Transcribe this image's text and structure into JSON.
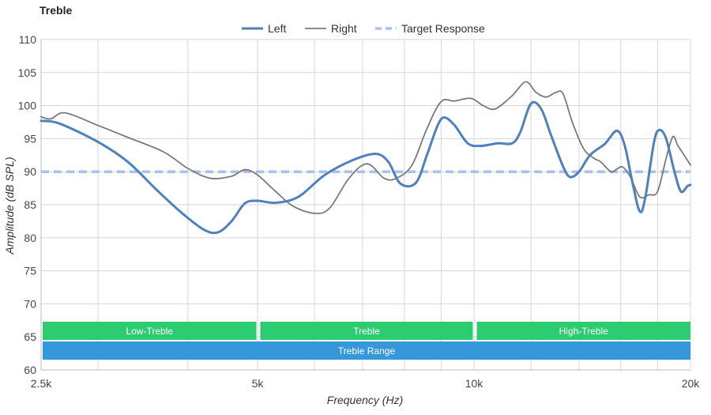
{
  "chart_data": {
    "type": "line",
    "title": "Treble",
    "xlabel": "Frequency (Hz)",
    "ylabel": "Amplitude (dB SPL)",
    "x_scale": "log",
    "xlim": [
      2500,
      20000
    ],
    "ylim": [
      60,
      110
    ],
    "x_ticks": [
      {
        "value": 2500,
        "label": "2.5k"
      },
      {
        "value": 5000,
        "label": "5k"
      },
      {
        "value": 10000,
        "label": "10k"
      },
      {
        "value": 20000,
        "label": "20k"
      }
    ],
    "y_ticks": [
      60,
      65,
      70,
      75,
      80,
      85,
      90,
      95,
      100,
      105,
      110
    ],
    "grid": true,
    "legend_position": "top-center",
    "series": [
      {
        "name": "Left",
        "color": "#4f81bd",
        "style": "solid-thick",
        "points": [
          [
            2500,
            97.7
          ],
          [
            2650,
            97.3
          ],
          [
            3000,
            94.5
          ],
          [
            3300,
            91.5
          ],
          [
            3600,
            87.5
          ],
          [
            3900,
            84.0
          ],
          [
            4200,
            81.3
          ],
          [
            4400,
            80.8
          ],
          [
            4600,
            82.5
          ],
          [
            4800,
            85.2
          ],
          [
            5000,
            85.6
          ],
          [
            5300,
            85.3
          ],
          [
            5700,
            86.2
          ],
          [
            6200,
            89.5
          ],
          [
            6800,
            91.8
          ],
          [
            7300,
            92.7
          ],
          [
            7600,
            91.5
          ],
          [
            7900,
            88.2
          ],
          [
            8300,
            88.3
          ],
          [
            8600,
            92.5
          ],
          [
            8900,
            97.0
          ],
          [
            9100,
            98.2
          ],
          [
            9400,
            97.0
          ],
          [
            9800,
            94.3
          ],
          [
            10200,
            93.9
          ],
          [
            10800,
            94.3
          ],
          [
            11300,
            94.3
          ],
          [
            11600,
            96.0
          ],
          [
            12000,
            100.3
          ],
          [
            12400,
            99.5
          ],
          [
            12800,
            95.5
          ],
          [
            13300,
            90.8
          ],
          [
            13600,
            89.2
          ],
          [
            14000,
            90.0
          ],
          [
            14500,
            92.5
          ],
          [
            15200,
            94.2
          ],
          [
            15800,
            96.2
          ],
          [
            16200,
            94.0
          ],
          [
            16600,
            88.5
          ],
          [
            17000,
            84.0
          ],
          [
            17300,
            86.0
          ],
          [
            17800,
            94.5
          ],
          [
            18100,
            96.3
          ],
          [
            18500,
            95.0
          ],
          [
            19000,
            90.0
          ],
          [
            19400,
            87.0
          ],
          [
            19800,
            87.8
          ],
          [
            20000,
            88.0
          ]
        ]
      },
      {
        "name": "Right",
        "color": "#7a7a7a",
        "style": "solid-thin",
        "points": [
          [
            2500,
            98.3
          ],
          [
            2580,
            98.0
          ],
          [
            2700,
            98.9
          ],
          [
            3000,
            97.0
          ],
          [
            3300,
            95.2
          ],
          [
            3700,
            93.0
          ],
          [
            4000,
            90.5
          ],
          [
            4300,
            89.0
          ],
          [
            4600,
            89.3
          ],
          [
            4800,
            90.3
          ],
          [
            5000,
            89.5
          ],
          [
            5300,
            87.0
          ],
          [
            5600,
            84.8
          ],
          [
            6000,
            83.7
          ],
          [
            6300,
            84.5
          ],
          [
            6700,
            89.0
          ],
          [
            7100,
            91.2
          ],
          [
            7500,
            89.0
          ],
          [
            7800,
            89.0
          ],
          [
            8200,
            91.0
          ],
          [
            8600,
            96.5
          ],
          [
            9000,
            100.6
          ],
          [
            9400,
            100.7
          ],
          [
            9900,
            101.1
          ],
          [
            10300,
            100.0
          ],
          [
            10700,
            99.5
          ],
          [
            11300,
            101.5
          ],
          [
            11800,
            103.6
          ],
          [
            12200,
            102.0
          ],
          [
            12600,
            101.3
          ],
          [
            13000,
            102.0
          ],
          [
            13300,
            101.8
          ],
          [
            13700,
            97.5
          ],
          [
            14200,
            93.5
          ],
          [
            14700,
            92.0
          ],
          [
            15000,
            91.5
          ],
          [
            15500,
            90.0
          ],
          [
            15800,
            90.4
          ],
          [
            16100,
            90.7
          ],
          [
            16500,
            89.2
          ],
          [
            17000,
            86.2
          ],
          [
            17500,
            86.5
          ],
          [
            18000,
            87.0
          ],
          [
            18500,
            92.0
          ],
          [
            18900,
            95.3
          ],
          [
            19200,
            94.0
          ],
          [
            19600,
            92.5
          ],
          [
            20000,
            91.0
          ]
        ]
      },
      {
        "name": "Target Response",
        "color": "#a9c0f5",
        "style": "dashed",
        "points": [
          [
            2500,
            90
          ],
          [
            20000,
            90
          ]
        ]
      }
    ],
    "bands": [
      {
        "label": "Low-Treble",
        "from": 2500,
        "to": 5000,
        "color": "#2ecc71",
        "row": 1
      },
      {
        "label": "Treble",
        "from": 5000,
        "to": 10000,
        "color": "#2ecc71",
        "row": 1
      },
      {
        "label": "High-Treble",
        "from": 10000,
        "to": 20000,
        "color": "#2ecc71",
        "row": 1
      },
      {
        "label": "Treble Range",
        "from": 2500,
        "to": 20000,
        "color": "#3498db",
        "row": 2
      }
    ]
  }
}
